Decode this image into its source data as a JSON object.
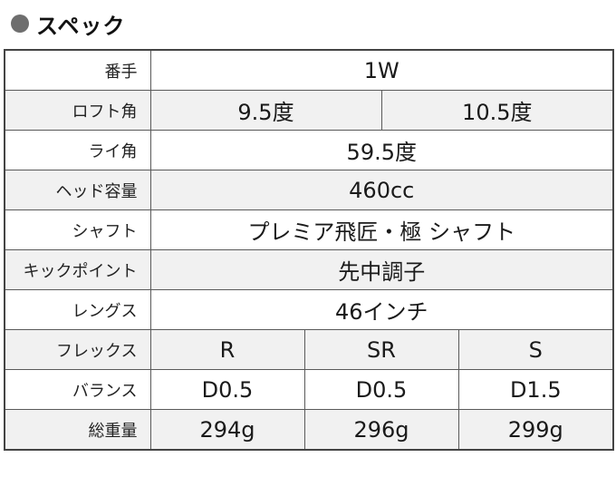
{
  "heading": "スペック",
  "rows": {
    "club": {
      "label": "番手",
      "value": "1W"
    },
    "loft": {
      "label": "ロフト角",
      "values": [
        "9.5度",
        "10.5度"
      ]
    },
    "lie": {
      "label": "ライ角",
      "value": "59.5度"
    },
    "head_volume": {
      "label": "ヘッド容量",
      "value": "460cc"
    },
    "shaft": {
      "label": "シャフト",
      "value": "プレミア飛匠・極 シャフト"
    },
    "kick_point": {
      "label": "キックポイント",
      "value": "先中調子"
    },
    "length": {
      "label": "レングス",
      "value": "46インチ"
    },
    "flex": {
      "label": "フレックス",
      "values": [
        "R",
        "SR",
        "S"
      ]
    },
    "balance": {
      "label": "バランス",
      "values": [
        "D0.5",
        "D0.5",
        "D1.5"
      ]
    },
    "total_weight": {
      "label": "総重量",
      "values": [
        "294g",
        "296g",
        "299g"
      ]
    }
  }
}
